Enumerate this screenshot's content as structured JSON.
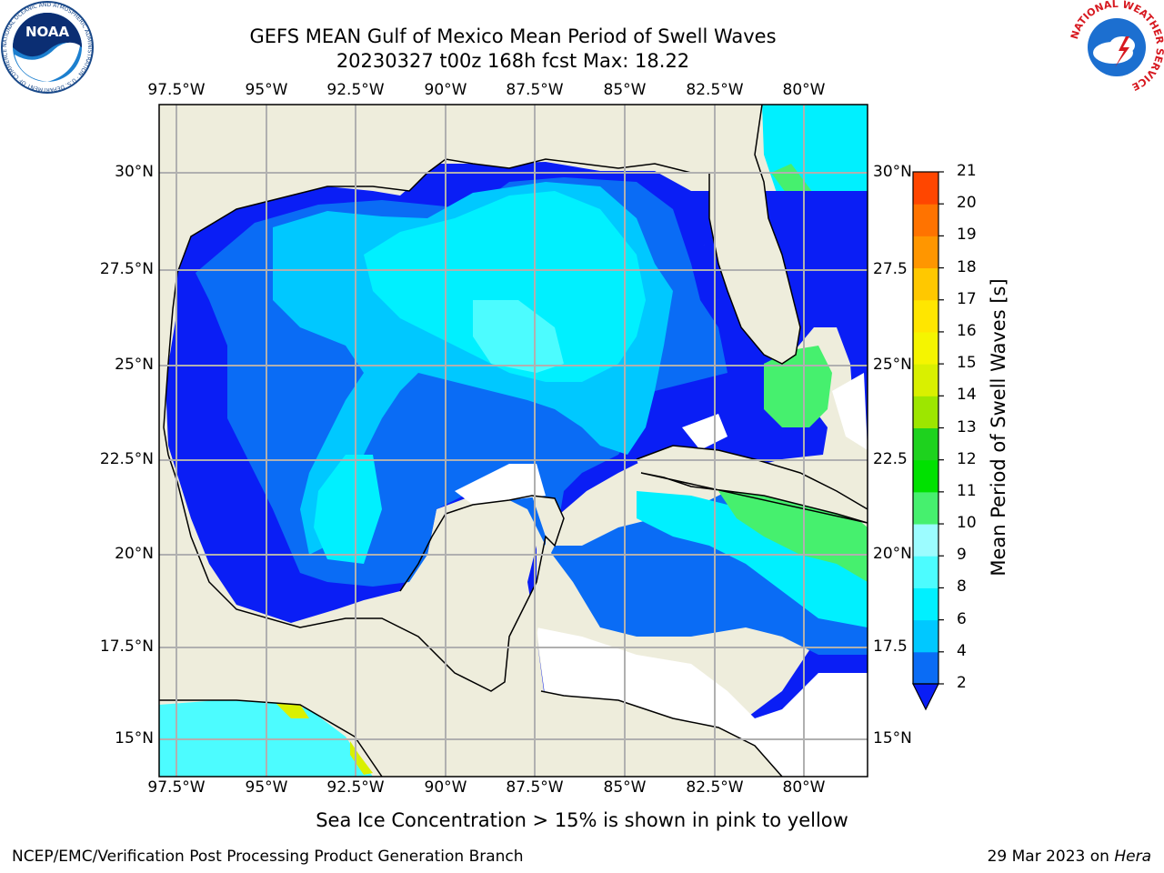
{
  "title": {
    "line1": "GEFS MEAN Gulf of Mexico Mean Period of Swell Waves",
    "line2": "20230327 t00z 168h fcst   Max: 18.22"
  },
  "map": {
    "lon_labels": [
      "97.5°W",
      "95°W",
      "92.5°W",
      "90°W",
      "87.5°W",
      "85°W",
      "82.5°W",
      "80°W"
    ],
    "lat_labels_left": [
      "30°N",
      "27.5°N",
      "25°N",
      "22.5°N",
      "20°N",
      "17.5°N",
      "15°N"
    ],
    "lat_labels_right": [
      "30°N",
      "27.5",
      "25°N",
      "22.5",
      "20°N",
      "17.5",
      "15°N"
    ],
    "land_color": "#eeeddc",
    "gridline_color": "#b0b0b0"
  },
  "colorbar": {
    "label": "Mean Period of Swell Waves [s]",
    "ticks": [
      "2",
      "4",
      "6",
      "8",
      "9",
      "10",
      "11",
      "12",
      "13",
      "14",
      "15",
      "16",
      "17",
      "18",
      "19",
      "20",
      "21"
    ],
    "colors": [
      "#0a6cf5",
      "#00c8ff",
      "#00f0ff",
      "#4cfcff",
      "#9cfcff",
      "#46f06e",
      "#00e100",
      "#1ed21e",
      "#9de600",
      "#d9f000",
      "#f5f500",
      "#ffe600",
      "#ffc800",
      "#ff9600",
      "#ff7300",
      "#ff4600",
      "#ff1400"
    ],
    "extend_color": "#0a1ef5"
  },
  "caption": "Sea Ice Concentration > 15% is shown in pink to yellow",
  "footer": {
    "left": "NCEP/EMC/Verification Post Processing Product Generation Branch",
    "right_prefix": "29 Mar 2023 on ",
    "right_host": "Hera"
  },
  "logos": {
    "noaa_text": "NOAA",
    "noaa_ring": "NATIONAL OCEANIC AND ATMOSPHERIC ADMINISTRATION · U.S. DEPARTMENT OF COMMERCE",
    "nws_ring": "NATIONAL WEATHER SERVICE"
  }
}
